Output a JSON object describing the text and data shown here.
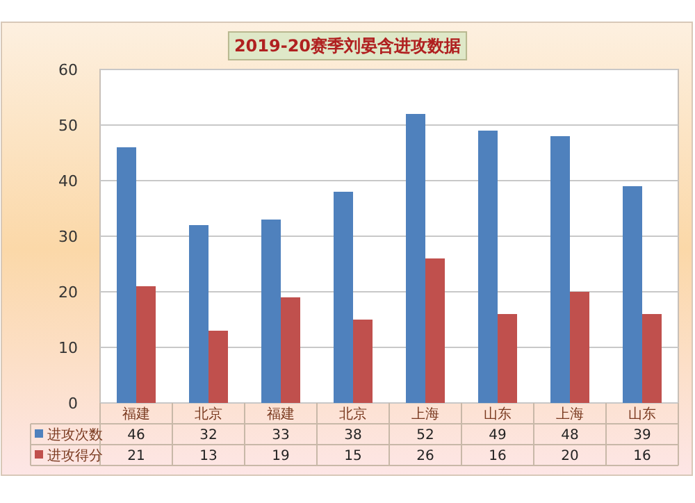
{
  "chart_data": {
    "type": "bar",
    "title": "2019-20赛季刘晏含进攻数据",
    "categories": [
      "福建",
      "北京",
      "福建",
      "北京",
      "上海",
      "山东",
      "上海",
      "山东"
    ],
    "series": [
      {
        "name": "进攻次数",
        "color": "#4f81bd",
        "values": [
          46,
          32,
          33,
          38,
          52,
          49,
          48,
          39
        ]
      },
      {
        "name": "进攻得分",
        "color": "#c0504d",
        "values": [
          21,
          13,
          19,
          15,
          26,
          16,
          20,
          16
        ]
      }
    ],
    "ylim": [
      0,
      60
    ],
    "yticks": [
      0,
      10,
      20,
      30,
      40,
      50,
      60
    ],
    "grid": "y",
    "legend": "bottom",
    "data_labels": true
  }
}
